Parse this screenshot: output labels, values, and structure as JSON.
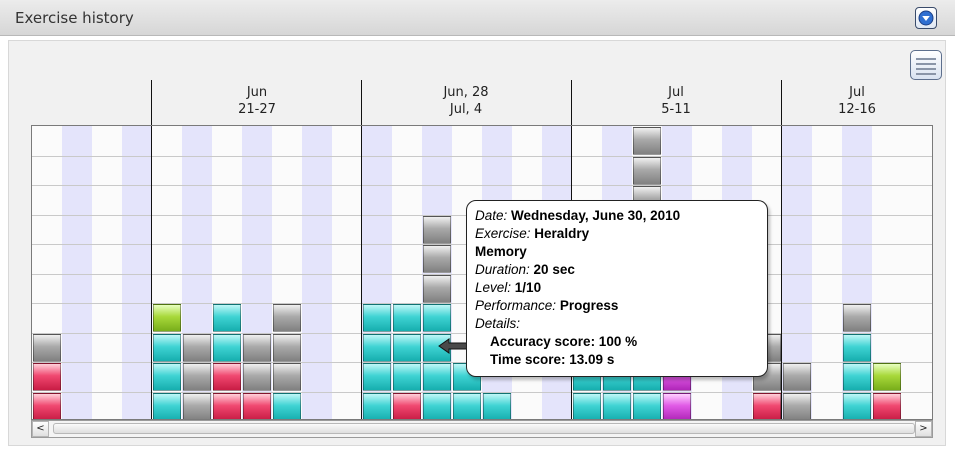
{
  "header": {
    "title": "Exercise history",
    "collapse_icon": "chevron-down-icon"
  },
  "legend_button": {
    "icon": "legend-icon"
  },
  "weeks": [
    {
      "line1": "Jun",
      "line2": "21-27"
    },
    {
      "line1": "Jun, 28",
      "line2": "Jul, 4"
    },
    {
      "line1": "Jul",
      "line2": "5-11"
    },
    {
      "line1": "Jul",
      "line2": "12-16"
    }
  ],
  "colors": {
    "teal": "#2cc6c6",
    "gray": "#9a9a9a",
    "red": "#e03058",
    "green": "#98cc2a",
    "magenta": "#d040d8",
    "band": "#e4e4fb"
  },
  "chart_data": {
    "type": "bar",
    "x_unit": "day",
    "days": [
      {
        "stack": [
          "red",
          "red",
          "gray"
        ]
      },
      {
        "stack": []
      },
      {
        "stack": []
      },
      {
        "stack": []
      },
      {
        "stack": [
          "teal",
          "teal",
          "teal",
          "green"
        ]
      },
      {
        "stack": [
          "gray",
          "gray",
          "gray"
        ]
      },
      {
        "stack": [
          "red",
          "red",
          "teal",
          "teal"
        ]
      },
      {
        "stack": [
          "red",
          "gray",
          "gray"
        ]
      },
      {
        "stack": [
          "teal",
          "gray",
          "gray",
          "gray"
        ]
      },
      {
        "stack": []
      },
      {
        "stack": []
      },
      {
        "stack": [
          "teal",
          "teal",
          "teal",
          "teal"
        ]
      },
      {
        "stack": [
          "red",
          "teal",
          "teal",
          "teal"
        ]
      },
      {
        "stack": [
          "teal",
          "teal",
          "teal",
          "teal",
          "gray",
          "gray",
          "gray"
        ]
      },
      {
        "stack": [
          "teal",
          "teal"
        ]
      },
      {
        "stack": [
          "teal"
        ]
      },
      {
        "stack": []
      },
      {
        "stack": []
      },
      {
        "stack": [
          "teal",
          "teal"
        ]
      },
      {
        "stack": [
          "teal",
          "teal"
        ]
      },
      {
        "stack": [
          "teal",
          "teal",
          "gray",
          "gray",
          "gray",
          "gray",
          "gray",
          "gray",
          "gray",
          "gray"
        ]
      },
      {
        "stack": [
          "magenta",
          "magenta"
        ]
      },
      {
        "stack": []
      },
      {
        "stack": []
      },
      {
        "stack": [
          "red",
          "gray",
          "gray"
        ]
      },
      {
        "stack": [
          "gray",
          "gray"
        ]
      },
      {
        "stack": []
      },
      {
        "stack": [
          "teal",
          "teal",
          "teal",
          "gray"
        ]
      },
      {
        "stack": [
          "red",
          "green"
        ]
      }
    ]
  },
  "tooltip": {
    "date_label": "Date:",
    "date_value": "Wednesday, June 30, 2010",
    "exercise_label": "Exercise:",
    "exercise_value": "Heraldry",
    "exercise_value2": "Memory",
    "duration_label": "Duration:",
    "duration_value": "20 sec",
    "level_label": "Level:",
    "level_value": "1/10",
    "performance_label": "Performance:",
    "performance_value": "Progress",
    "details_label": "Details:",
    "accuracy": "Accuracy score: 100 %",
    "time": "Time score: 13.09 s"
  },
  "scrollbar": {
    "left": "<",
    "right": ">"
  }
}
